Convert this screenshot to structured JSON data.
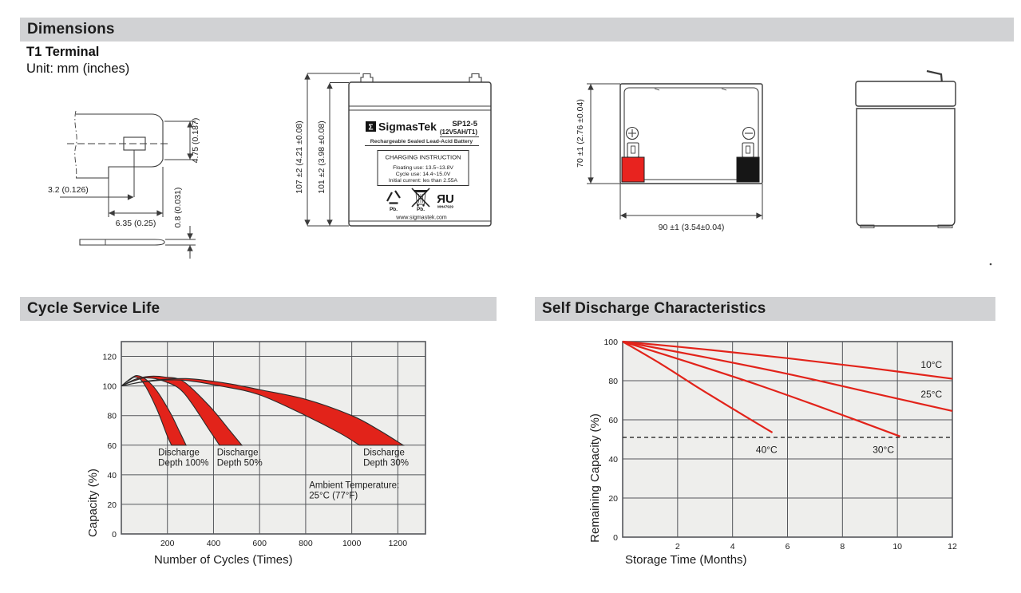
{
  "sections": {
    "dimensions_title": "Dimensions",
    "terminal_type": "T1 Terminal",
    "unit_note": "Unit: mm (inches)",
    "cycle_title": "Cycle Service Life",
    "self_discharge_title": "Self Discharge Characteristics"
  },
  "colors": {
    "header_bar": "#d1d2d4",
    "accent_red": "#e2231a",
    "chart_background": "#eeeeec"
  },
  "terminal_drawing": {
    "dim_tab_height": "4.75 (0.187)",
    "dim_hole_offset": "3.2 (0.126)",
    "dim_tab_width": "6.35 (0.25)",
    "dim_thickness": "0.8 (0.031)"
  },
  "front_view": {
    "dim_total_height": "107 ±2 (4.21 ±0.08)",
    "dim_case_height": "101 ±2 (3.98 ±0.08)",
    "label": {
      "sigma": "Σ",
      "brand": "SigmasTek",
      "model": "SP12-5",
      "spec": "(12V5AH/T1)",
      "battery_type": "Rechargeable Sealed Lead-Acid Battery",
      "charging_title": "CHARGING INSTRUCTION",
      "charging_floating": "Floating use: 13.5~13.8V",
      "charging_cycle": "Cycle use: 14.4~15.0V",
      "charging_initial": "Initial current: les than 2.55A",
      "pb_recycle": "Pb.",
      "pb_bin": "Pb.",
      "ul_file": "MH47929",
      "ul_mark": "ЯU",
      "website": "www.sigmastek.com"
    }
  },
  "top_view": {
    "dim_depth": "70 ±1 (2.76 ±0.04)",
    "dim_width": "90 ±1 (3.54±0.04)",
    "positive_color": "#e8231f",
    "negative_color": "#161616"
  },
  "chart_data": [
    {
      "id": "cycle_life",
      "type": "area",
      "title": "Cycle Service Life",
      "xlabel": "Number of Cycles (Times)",
      "ylabel": "Capacity (%)",
      "xlim": [
        0,
        1320
      ],
      "ylim": [
        0,
        130
      ],
      "x_ticks": [
        0,
        200,
        400,
        600,
        800,
        1000,
        1200
      ],
      "y_ticks": [
        0,
        20,
        40,
        60,
        80,
        100,
        120
      ],
      "grid": true,
      "legend": "none",
      "bg_color": "#eeeeec",
      "grid_color": "#55575b",
      "band_fill": "#e2231a",
      "band_stroke": "#2b2b2b",
      "bands": [
        {
          "name": "Discharge Depth 100%",
          "upper": [
            [
              0,
              100
            ],
            [
              40,
              105
            ],
            [
              70,
              107
            ],
            [
              110,
              104
            ],
            [
              155,
              96.5
            ],
            [
              212,
              82
            ],
            [
              250,
              70
            ],
            [
              281,
              60
            ]
          ],
          "lower": [
            [
              0,
              100
            ],
            [
              35,
              104
            ],
            [
              65,
              106
            ],
            [
              100,
              101
            ],
            [
              155,
              84
            ],
            [
              200,
              66
            ],
            [
              218,
              60
            ]
          ]
        },
        {
          "name": "Discharge Depth 50%",
          "upper": [
            [
              0,
              100
            ],
            [
              60,
              104.5
            ],
            [
              120,
              106.5
            ],
            [
              190,
              106
            ],
            [
              270,
              103
            ],
            [
              385,
              86
            ],
            [
              470,
              70
            ],
            [
              523,
              60
            ]
          ],
          "lower": [
            [
              0,
              100
            ],
            [
              55,
              103.5
            ],
            [
              110,
              105.5
            ],
            [
              180,
              103.5
            ],
            [
              270,
              95.5
            ],
            [
              385,
              69.5
            ],
            [
              426,
              60
            ]
          ]
        },
        {
          "name": "Discharge Depth 30%",
          "upper": [
            [
              0,
              100
            ],
            [
              120,
              103.5
            ],
            [
              280,
              105
            ],
            [
              450,
              102
            ],
            [
              600,
              97.5
            ],
            [
              800,
              91
            ],
            [
              1000,
              80
            ],
            [
              1120,
              70
            ],
            [
              1223,
              60
            ]
          ],
          "lower": [
            [
              0,
              100
            ],
            [
              110,
              103
            ],
            [
              260,
              104
            ],
            [
              430,
              100
            ],
            [
              600,
              94
            ],
            [
              800,
              80
            ],
            [
              950,
              68
            ],
            [
              1033,
              60
            ]
          ]
        }
      ],
      "annotations": [
        {
          "x": 160,
          "y": 53,
          "lines": [
            "Discharge",
            "Depth 100%"
          ]
        },
        {
          "x": 415,
          "y": 53,
          "lines": [
            "Discharge",
            "Depth 50%"
          ]
        },
        {
          "x": 1050,
          "y": 53,
          "lines": [
            "Discharge",
            "Depth 30%"
          ]
        },
        {
          "x": 815,
          "y": 31,
          "lines": [
            "Ambient Temperature:",
            "25°C (77°F)"
          ]
        }
      ]
    },
    {
      "id": "self_discharge",
      "type": "line",
      "title": "Self Discharge Characteristics",
      "xlabel": "Storage Time (Months)",
      "ylabel": "Remaining Capacity (%)",
      "xlim": [
        0,
        12
      ],
      "ylim": [
        0,
        100
      ],
      "x_ticks": [
        0,
        2,
        4,
        6,
        8,
        10,
        12
      ],
      "y_ticks": [
        0,
        20,
        40,
        60,
        80,
        100
      ],
      "grid": true,
      "legend": "inline-labels",
      "bg_color": "#eeeeec",
      "grid_color": "#55575b",
      "line_color": "#e2231a",
      "dashed_line_y": 51,
      "series": [
        {
          "name": "10°C",
          "points": [
            [
              0,
              100
            ],
            [
              3,
              96
            ],
            [
              6,
              91.5
            ],
            [
              9,
              86.5
            ],
            [
              12,
              81
            ]
          ],
          "label_x": 10.85,
          "label_y": 86.5
        },
        {
          "name": "25°C",
          "points": [
            [
              0,
              100
            ],
            [
              3,
              92
            ],
            [
              6,
              83.5
            ],
            [
              9,
              74
            ],
            [
              12,
              64.5
            ]
          ],
          "label_x": 10.85,
          "label_y": 71.5
        },
        {
          "name": "30°C",
          "points": [
            [
              0,
              100
            ],
            [
              2.5,
              89
            ],
            [
              5,
              77.5
            ],
            [
              7.6,
              64.5
            ],
            [
              10.1,
              51.5
            ]
          ],
          "label_x": 9.1,
          "label_y": 43
        },
        {
          "name": "40°C",
          "points": [
            [
              0,
              100
            ],
            [
              1.4,
              88.5
            ],
            [
              2.8,
              76
            ],
            [
              4.2,
              64
            ],
            [
              5.45,
              53.5
            ]
          ],
          "label_x": 4.85,
          "label_y": 43
        }
      ]
    }
  ]
}
